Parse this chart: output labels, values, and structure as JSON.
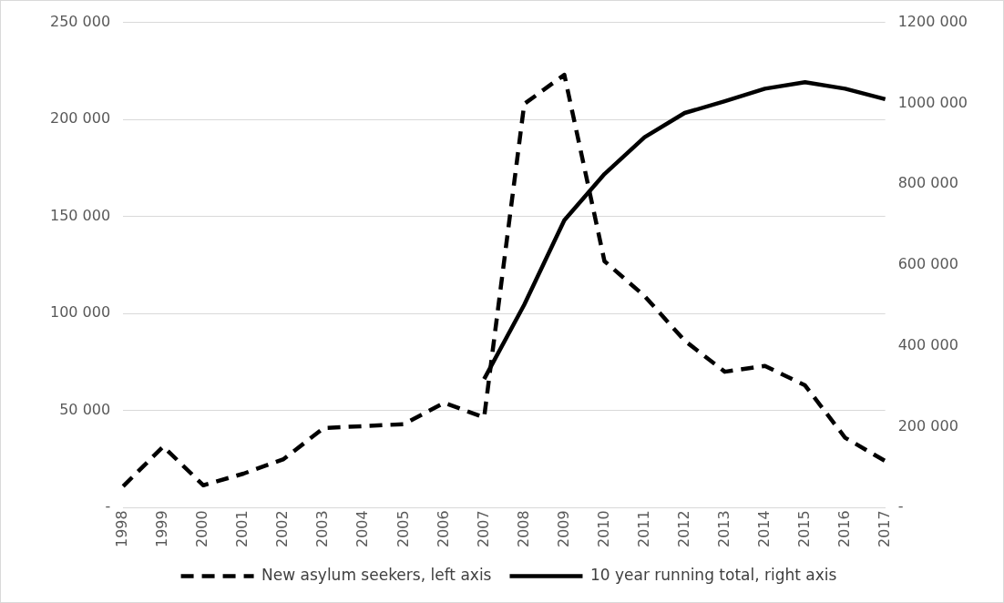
{
  "chart_data": {
    "type": "line",
    "categories": [
      "1998",
      "1999",
      "2000",
      "2001",
      "2002",
      "2003",
      "2004",
      "2005",
      "2006",
      "2007",
      "2008",
      "2009",
      "2010",
      "2011",
      "2012",
      "2013",
      "2014",
      "2015",
      "2016",
      "2017"
    ],
    "series": [
      {
        "name": "New asylum seekers, left axis",
        "color": "#000000",
        "line_style": "dashed",
        "values": [
          11000,
          31500,
          11500,
          17500,
          25000,
          41000,
          42000,
          43000,
          54000,
          46500,
          208000,
          223000,
          127000,
          109000,
          86000,
          70000,
          73000,
          63000,
          36000,
          24000
        ]
      },
      {
        "name": "10 year running total, right axis",
        "color": "#000000",
        "line_style": "solid",
        "axis": "y2",
        "values": [
          null,
          null,
          null,
          null,
          null,
          null,
          null,
          null,
          null,
          318000,
          502000,
          711000,
          825000,
          916000,
          976000,
          1005000,
          1036000,
          1052000,
          1036000,
          1010000
        ]
      }
    ],
    "ylim": [
      0,
      250000
    ],
    "yticks": [
      {
        "value": 0,
        "label": "-"
      },
      {
        "value": 50000,
        "label": "50 000"
      },
      {
        "value": 100000,
        "label": "100 000"
      },
      {
        "value": 150000,
        "label": "150 000"
      },
      {
        "value": 200000,
        "label": "200 000"
      },
      {
        "value": 250000,
        "label": "250 000"
      }
    ],
    "y2lim": [
      0,
      1200000
    ],
    "y2ticks": [
      {
        "value": 0,
        "label": "-"
      },
      {
        "value": 200000,
        "label": "200 000"
      },
      {
        "value": 400000,
        "label": "400 000"
      },
      {
        "value": 600000,
        "label": "600 000"
      },
      {
        "value": 800000,
        "label": "800 000"
      },
      {
        "value": 1000000,
        "label": "1000 000"
      },
      {
        "value": 1200000,
        "label": "1200 000"
      }
    ],
    "grid": "y",
    "legend": "bottom",
    "marker": "none"
  }
}
